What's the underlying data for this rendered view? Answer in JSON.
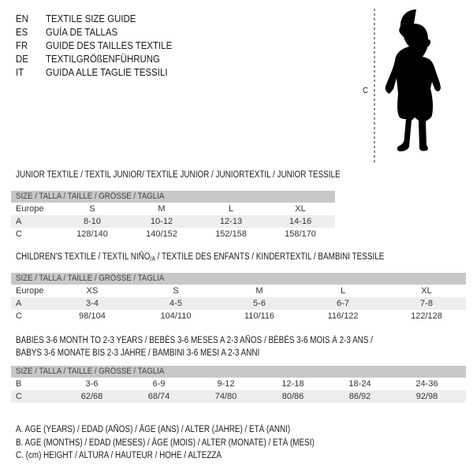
{
  "header": {
    "lines": [
      {
        "code": "EN",
        "title": "TEXTILE SIZE GUIDE"
      },
      {
        "code": "ES",
        "title": "GUÍA DE TALLAS"
      },
      {
        "code": "FR",
        "title": "GUIDE DES TAILLES TEXTILE"
      },
      {
        "code": "DE",
        "title": "TEXTILGRÖßENFÜHRUNG"
      },
      {
        "code": "IT",
        "title": "GUIDA ALLE TAGLIE TESSILI"
      }
    ]
  },
  "figure": {
    "label": "C",
    "icon": "baby-silhouette-icon"
  },
  "size_header": "SIZE / TALLA / TAILLE / GRÖSSE / TAGLIA",
  "junior": {
    "title": "JUNIOR TEXTILE / TEXTIL JUNIOR/ TEXTILE JUNIOR / JUNIORTEXTIL / JUNIOR TESSILE",
    "rows": [
      {
        "label": "Europe",
        "values": [
          "S",
          "M",
          "L",
          "XL"
        ]
      },
      {
        "label": "A",
        "values": [
          "8-10",
          "10-12",
          "12-13",
          "14-16"
        ]
      },
      {
        "label": "C",
        "values": [
          "128/140",
          "140/152",
          "152/158",
          "158/170"
        ]
      }
    ]
  },
  "children": {
    "title_pre": "CHILDREN'S TEXTILE / TEXTIL NIÑO",
    "title_sub": "/A",
    "title_post": " / TEXTILE DES ENFANTS / KINDERTEXTIL / BAMBINI TESSILE",
    "rows": [
      {
        "label": "Europe",
        "values": [
          "XS",
          "S",
          "M",
          "L",
          "XL"
        ]
      },
      {
        "label": "A",
        "values": [
          "3-4",
          "4-5",
          "5-6",
          "6-7",
          "7-8"
        ]
      },
      {
        "label": "C",
        "values": [
          "98/104",
          "104/110",
          "110/116",
          "116/122",
          "122/128"
        ]
      }
    ]
  },
  "babies": {
    "title_line1": "BABIES 3-6 MONTH TO 2-3 YEARS / BEBÉS 3-6 MESES A 2-3 AÑOS / BÉBÉS 3-6 MOIS À 2-3 ANS /",
    "title_line2": "BABYS 3-6 MONATE BIS 2-3 JAHRE / BAMBINI 3-6 MESI A 2-3 ANNI",
    "rows": [
      {
        "label": "B",
        "values": [
          "3-6",
          "6-9",
          "9-12",
          "12-18",
          "18-24",
          "24-36"
        ]
      },
      {
        "label": "C",
        "values": [
          "62/68",
          "68/74",
          "74/80",
          "80/86",
          "86/92",
          "92/98"
        ]
      }
    ]
  },
  "legend": [
    "A. AGE (YEARS) / EDAD (AÑOS) / ÂGE (ANS) / ALTER (JAHRE) / ETÀ (ANNI)",
    "B. AGE (MONTHS) / EDAD (MESES) / ÂGE (MOIS) / ALTER (MONATE) / ETÀ (MESI)",
    "C. (cm) HEIGHT / ALTURA / HAUTEUR / HÖHE / ALTEZZA"
  ]
}
